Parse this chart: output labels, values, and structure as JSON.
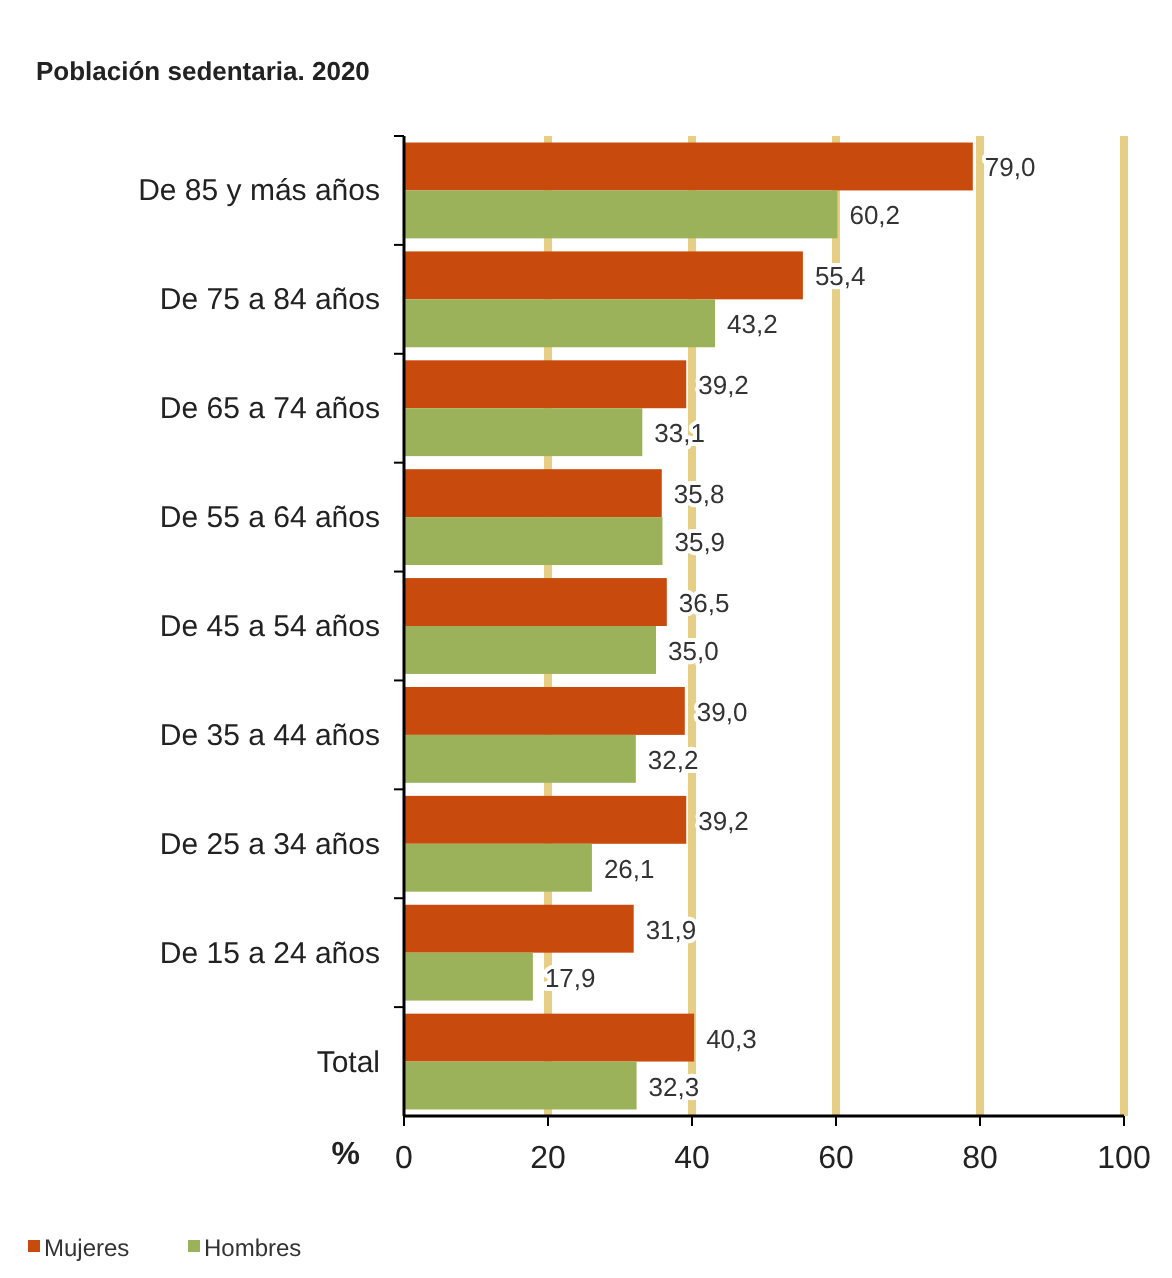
{
  "chart_data": {
    "type": "bar",
    "orientation": "horizontal",
    "title": "Población sedentaria. 2020",
    "xlabel": "%",
    "categories": [
      "De 85 y más años",
      "De 75 a 84 años",
      "De 65 a 74 años",
      "De 55 a 64 años",
      "De 45 a 54 años",
      "De 35 a 44 años",
      "De 25 a 34 años",
      "De 15 a 24 años",
      "Total"
    ],
    "series": [
      {
        "name": "Mujeres",
        "color": "#c84a0c",
        "values": [
          79.0,
          55.4,
          39.2,
          35.8,
          36.5,
          39.0,
          39.2,
          31.9,
          40.3
        ],
        "value_labels": [
          "79,0",
          "55,4",
          "39,2",
          "35,8",
          "36,5",
          "39,0",
          "39,2",
          "31,9",
          "40,3"
        ]
      },
      {
        "name": "Hombres",
        "color": "#9bb25a",
        "values": [
          60.2,
          43.2,
          33.1,
          35.9,
          35.0,
          32.2,
          26.1,
          17.9,
          32.3
        ],
        "value_labels": [
          "60,2",
          "43,2",
          "33,1",
          "35,9",
          "35,0",
          "32,2",
          "26,1",
          "17,9",
          "32,3"
        ]
      }
    ],
    "xlim": [
      0,
      100
    ],
    "xticks": [
      0,
      20,
      40,
      60,
      80,
      100
    ],
    "grid": "x",
    "legend": "bottom left"
  }
}
